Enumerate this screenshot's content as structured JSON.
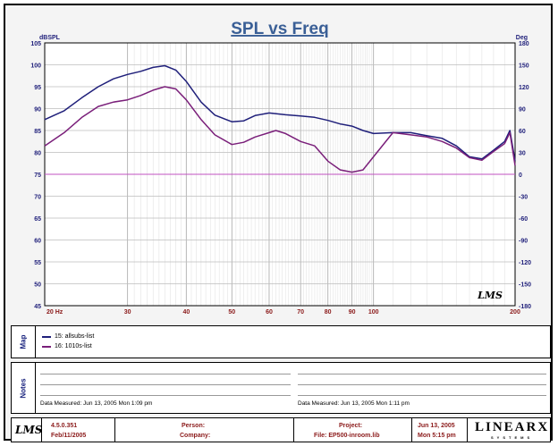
{
  "chart_data": {
    "type": "line",
    "title": "SPL vs Freq",
    "y_left_label": "dBSPL",
    "y_right_label": "Deg",
    "x_scale": "log",
    "xlim": [
      20,
      200
    ],
    "ylim": [
      45,
      105
    ],
    "y2lim": [
      -180,
      180
    ],
    "x_ticks": [
      20,
      30,
      40,
      50,
      60,
      70,
      80,
      90,
      100,
      200
    ],
    "x_tick_labels": [
      "20 Hz",
      "30",
      "40",
      "50",
      "60",
      "70",
      "80",
      "90",
      "100",
      "200"
    ],
    "y_ticks": [
      45,
      50,
      55,
      60,
      65,
      70,
      75,
      80,
      85,
      90,
      95,
      100,
      105
    ],
    "y2_ticks": [
      -180,
      -150,
      -120,
      -90,
      -60,
      -30,
      0,
      30,
      60,
      90,
      120,
      150,
      180
    ],
    "grid": true,
    "series": [
      {
        "name": "15: allsubs-list",
        "color": "#1f1f7a",
        "x": [
          20,
          22,
          24,
          26,
          28,
          30,
          32,
          34,
          36,
          38,
          40,
          43,
          46,
          50,
          53,
          56,
          60,
          65,
          70,
          75,
          80,
          85,
          90,
          95,
          100,
          110,
          120,
          130,
          140,
          150,
          160,
          170,
          180,
          190,
          195,
          200
        ],
        "y": [
          87.5,
          89.5,
          92.5,
          95,
          96.8,
          97.8,
          98.5,
          99.4,
          99.8,
          98.8,
          96.2,
          91.5,
          88.5,
          87,
          87.2,
          88.4,
          89,
          88.6,
          88.3,
          88,
          87.3,
          86.5,
          86,
          85,
          84.3,
          84.5,
          84.5,
          83.8,
          83.2,
          81.5,
          79,
          78.5,
          80.5,
          82.5,
          85,
          78
        ]
      },
      {
        "name": "16: 1010s-list",
        "color": "#7a1f7a",
        "x": [
          20,
          22,
          24,
          26,
          28,
          30,
          32,
          34,
          36,
          38,
          40,
          43,
          46,
          50,
          53,
          56,
          60,
          62,
          65,
          70,
          75,
          80,
          85,
          90,
          95,
          100,
          110,
          120,
          130,
          140,
          150,
          160,
          170,
          180,
          190,
          195,
          200
        ],
        "y": [
          81.5,
          84.5,
          88,
          90.5,
          91.5,
          92,
          93,
          94.2,
          95,
          94.5,
          92,
          87.5,
          84,
          81.8,
          82.3,
          83.5,
          84.5,
          85,
          84.3,
          82.5,
          81.5,
          78,
          76,
          75.5,
          76,
          79,
          84.5,
          84,
          83.5,
          82.5,
          81,
          78.8,
          78.2,
          80.2,
          82,
          84.5,
          77
        ]
      },
      {
        "name": "0",
        "color": "#c050c0",
        "x": [
          20,
          200
        ],
        "y": [
          75,
          75
        ]
      }
    ]
  },
  "legend": {
    "label": "Map",
    "items": [
      {
        "text": "15: allsubs-list",
        "color": "#1f1f7a"
      },
      {
        "text": "16: 1010s-list",
        "color": "#7a1f7a"
      }
    ]
  },
  "notes": {
    "label": "Notes",
    "left_measured": "Data Measured:  Jun 13, 2005   Mon   1:09 pm",
    "right_measured": "Data Measured:  Jun 13, 2005   Mon   1:11 pm"
  },
  "footer": {
    "version": "4.5.0.351",
    "version_date": "Feb/11/2005",
    "person_label": "Person:",
    "company_label": "Company:",
    "project_label": "Project:",
    "file_label": "File: EP500-inroom.lib",
    "date": "Jun 13, 2005",
    "day_time": "Mon   5:15 pm",
    "brand": "LINEARX",
    "brand_sub": "SYSTEMS",
    "lms_logo": "LMS"
  },
  "watermark": "LMS"
}
